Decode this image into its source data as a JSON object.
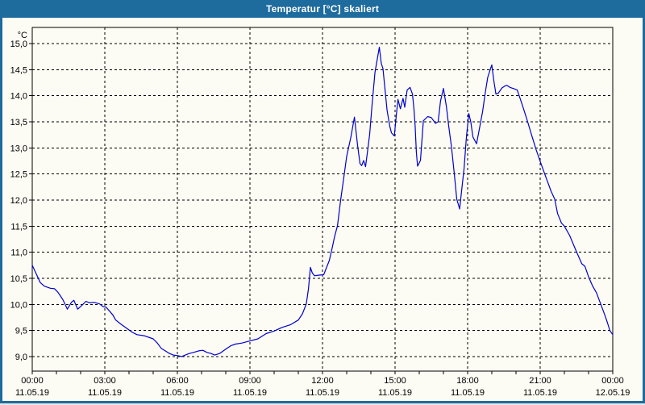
{
  "window": {
    "title": "Temperatur [°C] skaliert",
    "titlebar_color": "#1E6B9E",
    "background_color": "#FCFCF4"
  },
  "chart_data": {
    "type": "line",
    "title": "Temperatur [°C] skaliert",
    "grid": {
      "style": "dashed",
      "color": "#000000",
      "visible": true
    },
    "legend": "none",
    "y_axis": {
      "unit": "°C",
      "min": 9.0,
      "max": 15.0,
      "step": 0.5,
      "ticks": [
        {
          "value": 15.0,
          "label": "15,0"
        },
        {
          "value": 14.5,
          "label": "14,5"
        },
        {
          "value": 14.0,
          "label": "14,0"
        },
        {
          "value": 13.5,
          "label": "13,5"
        },
        {
          "value": 13.0,
          "label": "13,0"
        },
        {
          "value": 12.5,
          "label": "12,5"
        },
        {
          "value": 12.0,
          "label": "12,0"
        },
        {
          "value": 11.5,
          "label": "11,5"
        },
        {
          "value": 11.0,
          "label": "11,0"
        },
        {
          "value": 10.5,
          "label": "10,5"
        },
        {
          "value": 10.0,
          "label": "10,0"
        },
        {
          "value": 9.5,
          "label": "9,5"
        },
        {
          "value": 9.0,
          "label": "9,0"
        }
      ]
    },
    "x_axis": {
      "range_hours": [
        0,
        24
      ],
      "minor_tick_every_hours": 1,
      "major_ticks": [
        {
          "hour": 0,
          "time": "00:00",
          "date": "11.05.19"
        },
        {
          "hour": 3,
          "time": "03:00",
          "date": "11.05.19"
        },
        {
          "hour": 6,
          "time": "06:00",
          "date": "11.05.19"
        },
        {
          "hour": 9,
          "time": "09:00",
          "date": "11.05.19"
        },
        {
          "hour": 12,
          "time": "12:00",
          "date": "11.05.19"
        },
        {
          "hour": 15,
          "time": "15:00",
          "date": "11.05.19"
        },
        {
          "hour": 18,
          "time": "18:00",
          "date": "11.05.19"
        },
        {
          "hour": 21,
          "time": "21:00",
          "date": "11.05.19"
        },
        {
          "hour": 24,
          "time": "00:00",
          "date": "12.05.19"
        }
      ]
    },
    "series": [
      {
        "name": "Temperatur [°C]",
        "color": "#0000CD",
        "points": [
          [
            0,
            10.75
          ],
          [
            0.17,
            10.58
          ],
          [
            0.33,
            10.42
          ],
          [
            0.5,
            10.35
          ],
          [
            0.75,
            10.31
          ],
          [
            0.92,
            10.3
          ],
          [
            1.05,
            10.24
          ],
          [
            1.17,
            10.16
          ],
          [
            1.28,
            10.08
          ],
          [
            1.45,
            9.91
          ],
          [
            1.62,
            10.04
          ],
          [
            1.72,
            10.08
          ],
          [
            1.88,
            9.91
          ],
          [
            2.05,
            9.98
          ],
          [
            2.22,
            10.06
          ],
          [
            2.38,
            10.03
          ],
          [
            2.55,
            10.04
          ],
          [
            2.78,
            10.01
          ],
          [
            2.92,
            9.96
          ],
          [
            3.05,
            9.95
          ],
          [
            3.33,
            9.8
          ],
          [
            3.45,
            9.7
          ],
          [
            3.67,
            9.62
          ],
          [
            3.88,
            9.55
          ],
          [
            4.12,
            9.47
          ],
          [
            4.33,
            9.42
          ],
          [
            4.62,
            9.4
          ],
          [
            5,
            9.34
          ],
          [
            5.17,
            9.26
          ],
          [
            5.33,
            9.16
          ],
          [
            5.5,
            9.11
          ],
          [
            5.67,
            9.06
          ],
          [
            5.83,
            9.03
          ],
          [
            6,
            9.02
          ],
          [
            6.17,
            9
          ],
          [
            6.33,
            9.03
          ],
          [
            6.5,
            9.06
          ],
          [
            6.67,
            9.08
          ],
          [
            6.88,
            9.11
          ],
          [
            7.05,
            9.12
          ],
          [
            7.22,
            9.08
          ],
          [
            7.38,
            9.06
          ],
          [
            7.55,
            9.03
          ],
          [
            7.75,
            9.06
          ],
          [
            7.9,
            9.11
          ],
          [
            8.05,
            9.16
          ],
          [
            8.22,
            9.21
          ],
          [
            8.4,
            9.24
          ],
          [
            8.67,
            9.26
          ],
          [
            9,
            9.3
          ],
          [
            9.33,
            9.34
          ],
          [
            9.67,
            9.44
          ],
          [
            10,
            9.49
          ],
          [
            10.33,
            9.56
          ],
          [
            10.67,
            9.61
          ],
          [
            11,
            9.7
          ],
          [
            11.17,
            9.82
          ],
          [
            11.33,
            10.01
          ],
          [
            11.42,
            10.3
          ],
          [
            11.5,
            10.71
          ],
          [
            11.58,
            10.6
          ],
          [
            11.67,
            10.55
          ],
          [
            11.83,
            10.56
          ],
          [
            12.05,
            10.57
          ],
          [
            12.28,
            10.84
          ],
          [
            12.38,
            11.04
          ],
          [
            12.5,
            11.3
          ],
          [
            12.62,
            11.51
          ],
          [
            12.75,
            12
          ],
          [
            12.88,
            12.43
          ],
          [
            13,
            12.84
          ],
          [
            13.17,
            13.2
          ],
          [
            13.32,
            13.59
          ],
          [
            13.45,
            13.05
          ],
          [
            13.55,
            12.7
          ],
          [
            13.62,
            12.66
          ],
          [
            13.7,
            12.76
          ],
          [
            13.78,
            12.64
          ],
          [
            13.88,
            13
          ],
          [
            13.95,
            13.26
          ],
          [
            14.05,
            13.83
          ],
          [
            14.17,
            14.45
          ],
          [
            14.35,
            14.93
          ],
          [
            14.43,
            14.62
          ],
          [
            14.5,
            14.52
          ],
          [
            14.57,
            14.19
          ],
          [
            14.67,
            13.72
          ],
          [
            14.78,
            13.42
          ],
          [
            14.85,
            13.29
          ],
          [
            14.97,
            13.23
          ],
          [
            15.05,
            13.62
          ],
          [
            15.12,
            13.93
          ],
          [
            15.22,
            13.75
          ],
          [
            15.33,
            13.95
          ],
          [
            15.4,
            13.78
          ],
          [
            15.5,
            14.11
          ],
          [
            15.62,
            14.16
          ],
          [
            15.72,
            14.03
          ],
          [
            15.78,
            13.75
          ],
          [
            15.83,
            13.42
          ],
          [
            15.88,
            12.92
          ],
          [
            15.93,
            12.65
          ],
          [
            16.05,
            12.76
          ],
          [
            16.17,
            13.52
          ],
          [
            16.28,
            13.57
          ],
          [
            16.35,
            13.6
          ],
          [
            16.5,
            13.58
          ],
          [
            16.67,
            13.47
          ],
          [
            16.78,
            13.5
          ],
          [
            16.88,
            13.9
          ],
          [
            17,
            14.14
          ],
          [
            17.12,
            13.8
          ],
          [
            17.22,
            13.41
          ],
          [
            17.33,
            13.03
          ],
          [
            17.45,
            12.5
          ],
          [
            17.55,
            12.02
          ],
          [
            17.67,
            11.83
          ],
          [
            17.78,
            12.3
          ],
          [
            17.85,
            12.59
          ],
          [
            17.95,
            13.21
          ],
          [
            18.05,
            13.66
          ],
          [
            18.13,
            13.5
          ],
          [
            18.22,
            13.21
          ],
          [
            18.37,
            13.08
          ],
          [
            18.5,
            13.4
          ],
          [
            18.62,
            13.7
          ],
          [
            18.72,
            14.03
          ],
          [
            18.83,
            14.35
          ],
          [
            18.92,
            14.48
          ],
          [
            19,
            14.59
          ],
          [
            19.08,
            14.3
          ],
          [
            19.17,
            14.03
          ],
          [
            19.27,
            14.05
          ],
          [
            19.42,
            14.15
          ],
          [
            19.55,
            14.19
          ],
          [
            19.62,
            14.2
          ],
          [
            19.75,
            14.16
          ],
          [
            19.88,
            14.14
          ],
          [
            20.05,
            14.11
          ],
          [
            20.22,
            13.88
          ],
          [
            20.45,
            13.55
          ],
          [
            20.67,
            13.21
          ],
          [
            20.83,
            12.97
          ],
          [
            21,
            12.74
          ],
          [
            21.22,
            12.46
          ],
          [
            21.45,
            12.17
          ],
          [
            21.6,
            12.02
          ],
          [
            21.72,
            11.74
          ],
          [
            21.88,
            11.56
          ],
          [
            22,
            11.5
          ],
          [
            22.22,
            11.32
          ],
          [
            22.5,
            11.01
          ],
          [
            22.72,
            10.78
          ],
          [
            22.85,
            10.73
          ],
          [
            23,
            10.53
          ],
          [
            23.17,
            10.35
          ],
          [
            23.33,
            10.22
          ],
          [
            23.5,
            10.01
          ],
          [
            23.67,
            9.8
          ],
          [
            23.78,
            9.65
          ],
          [
            23.88,
            9.5
          ],
          [
            24,
            9.42
          ]
        ]
      }
    ]
  }
}
